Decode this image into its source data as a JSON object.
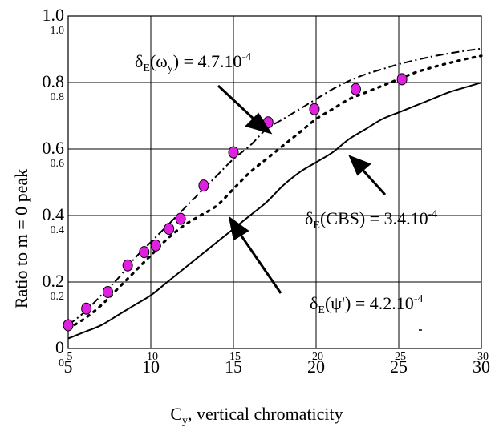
{
  "chart_data": {
    "type": "line",
    "title": "",
    "xlabel_main": "C",
    "xlabel_sub": "y",
    "xlabel_rest": ", vertical chromaticity",
    "ylabel": "Ratio to m = 0 peak",
    "xlim": [
      5,
      30
    ],
    "ylim": [
      0,
      1.0
    ],
    "grid": true,
    "x_ticks_large": [
      "5",
      "10",
      "15",
      "20",
      "25",
      "30"
    ],
    "x_ticks_small": [
      "5",
      "10",
      "15",
      "20",
      "25",
      "30"
    ],
    "y_ticks_large": [
      "0",
      "0.2",
      "0.4",
      "0.6",
      "0.8",
      "1.0"
    ],
    "y_ticks_small": [
      "0",
      "0.2",
      "0.4",
      "0.6",
      "0.8",
      "1.0"
    ],
    "x_tick_values": [
      5,
      10,
      15,
      20,
      25,
      30
    ],
    "y_tick_values": [
      0,
      0.2,
      0.4,
      0.6,
      0.8,
      1.0
    ],
    "series": [
      {
        "style": "dashdot",
        "x": [
          5,
          6,
          7,
          8,
          9,
          10,
          11,
          12,
          13,
          14,
          15,
          16,
          17,
          18,
          19,
          20,
          21,
          22,
          23,
          24,
          25,
          26,
          27,
          28,
          29,
          30
        ],
        "y": [
          0.07,
          0.11,
          0.16,
          0.21,
          0.27,
          0.32,
          0.37,
          0.42,
          0.47,
          0.52,
          0.57,
          0.61,
          0.66,
          0.69,
          0.72,
          0.75,
          0.78,
          0.805,
          0.825,
          0.84,
          0.855,
          0.867,
          0.878,
          0.887,
          0.895,
          0.902
        ]
      },
      {
        "style": "dotted",
        "x": [
          5,
          6,
          7,
          8,
          9,
          10,
          11,
          12,
          13,
          14,
          15,
          16,
          17,
          18,
          19,
          20,
          21,
          22,
          23,
          24,
          25,
          26,
          27,
          28,
          29,
          30
        ],
        "y": [
          0.06,
          0.09,
          0.13,
          0.18,
          0.23,
          0.28,
          0.33,
          0.37,
          0.4,
          0.43,
          0.48,
          0.53,
          0.57,
          0.61,
          0.65,
          0.69,
          0.72,
          0.75,
          0.77,
          0.79,
          0.81,
          0.83,
          0.845,
          0.858,
          0.87,
          0.88
        ]
      },
      {
        "style": "solid",
        "x": [
          5,
          6,
          7,
          8,
          9,
          10,
          11,
          12,
          13,
          14,
          15,
          16,
          17,
          18,
          19,
          20,
          21,
          22,
          23,
          24,
          25,
          26,
          27,
          28,
          29,
          30
        ],
        "y": [
          0.03,
          0.05,
          0.07,
          0.1,
          0.13,
          0.16,
          0.2,
          0.24,
          0.28,
          0.32,
          0.36,
          0.4,
          0.44,
          0.49,
          0.53,
          0.56,
          0.59,
          0.63,
          0.66,
          0.69,
          0.71,
          0.73,
          0.75,
          0.77,
          0.785,
          0.8
        ]
      }
    ],
    "measured_points": {
      "x": [
        5.0,
        6.1,
        7.4,
        8.6,
        9.6,
        10.3,
        11.1,
        11.8,
        13.2,
        15.0,
        17.1,
        19.9,
        22.4,
        25.2
      ],
      "y": [
        0.07,
        0.12,
        0.17,
        0.25,
        0.29,
        0.31,
        0.36,
        0.39,
        0.49,
        0.59,
        0.68,
        0.72,
        0.78,
        0.81
      ]
    },
    "annotations": {
      "omega": {
        "pre": "δ",
        "sub": "E",
        "mid": "(ω",
        "sub2": "y",
        "post": ") = 4.7.10",
        "sup": "-4"
      },
      "cbs": {
        "pre": "δ",
        "sub": "E",
        "post": "(CBS) = 3.4.10",
        "sup": "-4"
      },
      "psi": {
        "pre": "δ",
        "sub": "E",
        "post": "(ψ') = 4.2.10",
        "sup": "-4"
      }
    },
    "colors": {
      "marker_fill": "#e020e0",
      "marker_stroke": "#000000",
      "line": "#000000",
      "grid": "#000000"
    }
  }
}
